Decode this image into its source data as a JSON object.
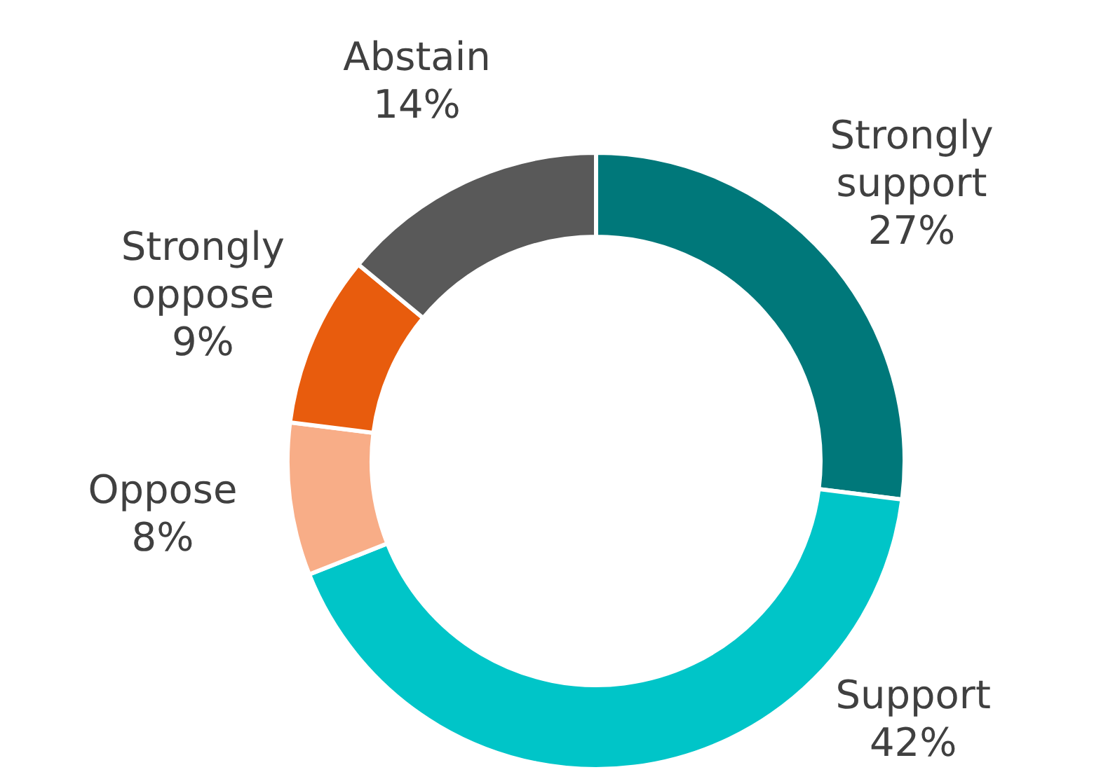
{
  "chart_data": {
    "type": "donut",
    "categories": [
      "Strongly support",
      "Support",
      "Oppose",
      "Strongly oppose",
      "Abstain"
    ],
    "values": [
      27,
      42,
      8,
      9,
      14
    ],
    "colors": [
      "#00787a",
      "#00c5c8",
      "#f8ad87",
      "#e85c0d",
      "#595959"
    ],
    "value_labels": [
      "27%",
      "42%",
      "8%",
      "9%",
      "14%"
    ]
  }
}
